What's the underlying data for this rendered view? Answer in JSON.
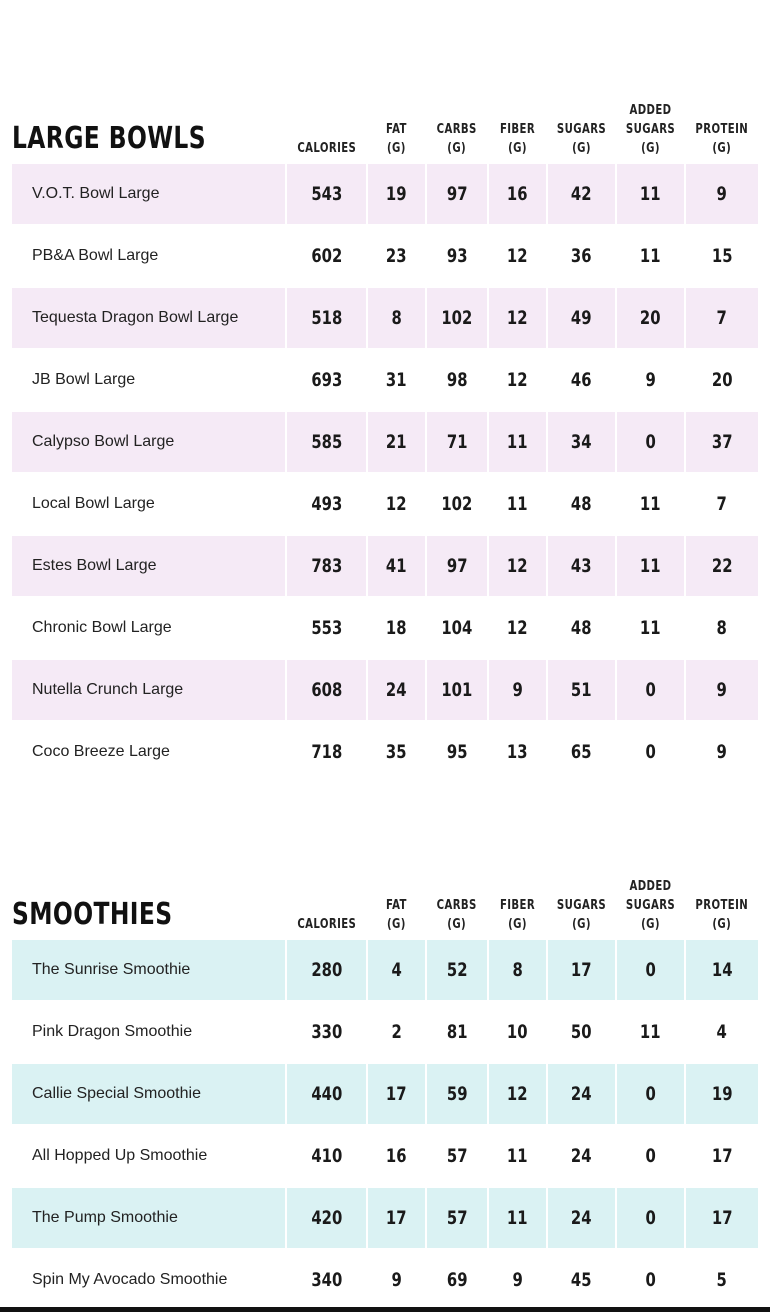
{
  "colors": {
    "bowls_row": "#f5eaf6",
    "smoothies_row": "#daf2f3"
  },
  "columns": [
    "CALORIES",
    "FAT\n(G)",
    "CARBS\n(G)",
    "FIBER\n(G)",
    "SUGARS\n(G)",
    "ADDED\nSUGARS\n(G)",
    "PROTEIN\n(G)"
  ],
  "sections": [
    {
      "title": "LARGE BOWLS",
      "rows": [
        {
          "name": "V.O.T. Bowl Large",
          "values": [
            "543",
            "19",
            "97",
            "16",
            "42",
            "11",
            "9"
          ]
        },
        {
          "name": "PB&A Bowl Large",
          "values": [
            "602",
            "23",
            "93",
            "12",
            "36",
            "11",
            "15"
          ]
        },
        {
          "name": "Tequesta Dragon Bowl Large",
          "values": [
            "518",
            "8",
            "102",
            "12",
            "49",
            "20",
            "7"
          ]
        },
        {
          "name": "JB Bowl Large",
          "values": [
            "693",
            "31",
            "98",
            "12",
            "46",
            "9",
            "20"
          ]
        },
        {
          "name": "Calypso Bowl Large",
          "values": [
            "585",
            "21",
            "71",
            "11",
            "34",
            "0",
            "37"
          ]
        },
        {
          "name": "Local Bowl Large",
          "values": [
            "493",
            "12",
            "102",
            "11",
            "48",
            "11",
            "7"
          ]
        },
        {
          "name": "Estes Bowl Large",
          "values": [
            "783",
            "41",
            "97",
            "12",
            "43",
            "11",
            "22"
          ]
        },
        {
          "name": "Chronic Bowl Large",
          "values": [
            "553",
            "18",
            "104",
            "12",
            "48",
            "11",
            "8"
          ]
        },
        {
          "name": "Nutella Crunch Large",
          "values": [
            "608",
            "24",
            "101",
            "9",
            "51",
            "0",
            "9"
          ]
        },
        {
          "name": "Coco Breeze Large",
          "values": [
            "718",
            "35",
            "95",
            "13",
            "65",
            "0",
            "9"
          ]
        }
      ]
    },
    {
      "title": "SMOOTHIES",
      "rows": [
        {
          "name": "The Sunrise Smoothie",
          "values": [
            "280",
            "4",
            "52",
            "8",
            "17",
            "0",
            "14"
          ]
        },
        {
          "name": "Pink Dragon Smoothie",
          "values": [
            "330",
            "2",
            "81",
            "10",
            "50",
            "11",
            "4"
          ]
        },
        {
          "name": "Callie Special Smoothie",
          "values": [
            "440",
            "17",
            "59",
            "12",
            "24",
            "0",
            "19"
          ]
        },
        {
          "name": "All Hopped Up Smoothie",
          "values": [
            "410",
            "16",
            "57",
            "11",
            "24",
            "0",
            "17"
          ]
        },
        {
          "name": "The Pump Smoothie",
          "values": [
            "420",
            "17",
            "57",
            "11",
            "24",
            "0",
            "17"
          ]
        },
        {
          "name": "Spin My Avocado Smoothie",
          "values": [
            "340",
            "9",
            "69",
            "9",
            "45",
            "0",
            "5"
          ]
        }
      ]
    }
  ]
}
